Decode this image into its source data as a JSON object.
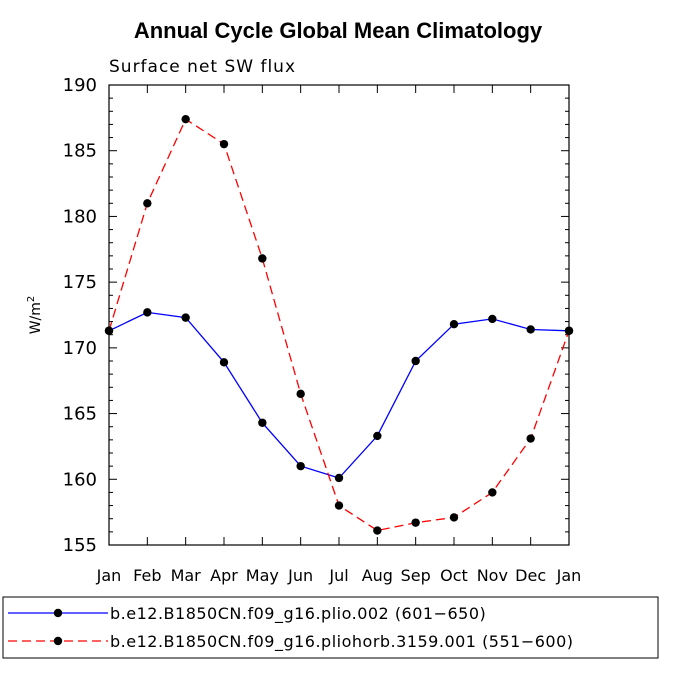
{
  "chart_data": {
    "type": "line",
    "title": "Annual Cycle Global Mean Climatology",
    "subtitle": "Surface net SW flux",
    "ylabel": "W/m",
    "ylabel_superscript": "2",
    "xlabel": "",
    "categories": [
      "Jan",
      "Feb",
      "Mar",
      "Apr",
      "May",
      "Jun",
      "Jul",
      "Aug",
      "Sep",
      "Oct",
      "Nov",
      "Dec",
      "Jan"
    ],
    "ylim": [
      155,
      190
    ],
    "yticks": [
      "155",
      "160",
      "165",
      "170",
      "175",
      "180",
      "185",
      "190"
    ],
    "series": [
      {
        "name": "b.e12.B1850CN.f09_g16.plio.002 (601−650)",
        "color": "#0000ff",
        "style": "solid",
        "values": [
          171.3,
          172.7,
          172.3,
          168.9,
          164.3,
          161.0,
          160.1,
          163.3,
          169.0,
          171.8,
          172.2,
          171.4,
          171.3
        ]
      },
      {
        "name": "b.e12.B1850CN.f09_g16.pliohorb.3159.001 (551−600)",
        "color": "#ff0000",
        "style": "dashed",
        "values": [
          171.3,
          181.0,
          187.4,
          185.5,
          176.8,
          166.5,
          158.0,
          156.1,
          156.7,
          157.1,
          159.0,
          163.1,
          171.3
        ]
      }
    ],
    "grid": false,
    "legend": "bottom"
  }
}
